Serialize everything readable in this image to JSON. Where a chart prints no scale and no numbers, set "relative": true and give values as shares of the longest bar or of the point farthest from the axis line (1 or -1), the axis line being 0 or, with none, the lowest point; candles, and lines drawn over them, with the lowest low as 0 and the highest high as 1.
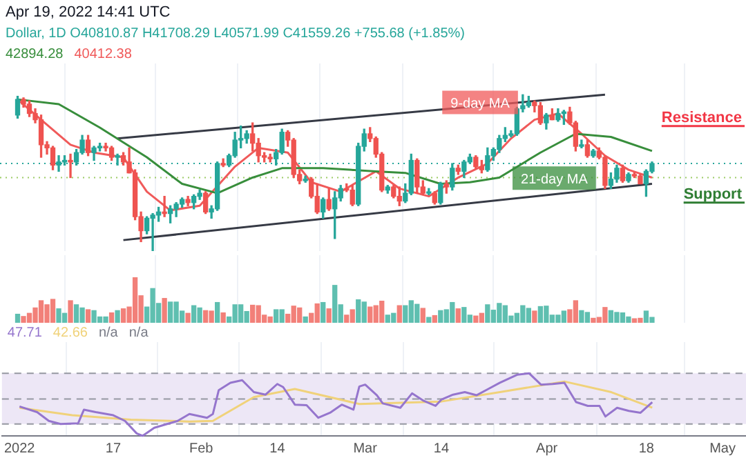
{
  "chart_data": [
    {
      "type": "candlestick",
      "title": "Apr 19, 2022 14:41 UTC",
      "subtitle": "Dollar, 1D  O40810.87  H41708.29  L40571.99  C41559.26  +755.68 (+1.85%)",
      "relative": true,
      "grid": "x",
      "tick_labels": false,
      "xlim": [
        "2021-12-29",
        "2022-05-05"
      ],
      "xticks": [
        {
          "value": "2022-01-01",
          "label": null
        },
        {
          "value": "2022-01-17",
          "label": null
        },
        {
          "value": "2022-02-01",
          "label": null
        },
        {
          "value": "2022-02-14",
          "label": null
        },
        {
          "value": "2022-03-01",
          "label": null
        },
        {
          "value": "2022-03-14",
          "label": null
        },
        {
          "value": "2022-04-01",
          "label": null
        },
        {
          "value": "2022-04-18",
          "label": null
        },
        {
          "value": "2022-05-01",
          "label": null
        }
      ],
      "x": [
        "2022-01-01",
        "2022-01-02",
        "2022-01-03",
        "2022-01-04",
        "2022-01-05",
        "2022-01-06",
        "2022-01-07",
        "2022-01-08",
        "2022-01-09",
        "2022-01-10",
        "2022-01-11",
        "2022-01-12",
        "2022-01-13",
        "2022-01-14",
        "2022-01-15",
        "2022-01-16",
        "2022-01-17",
        "2022-01-18",
        "2022-01-19",
        "2022-01-20",
        "2022-01-21",
        "2022-01-22",
        "2022-01-23",
        "2022-01-24",
        "2022-01-25",
        "2022-01-26",
        "2022-01-27",
        "2022-01-28",
        "2022-01-29",
        "2022-01-30",
        "2022-01-31",
        "2022-02-01",
        "2022-02-02",
        "2022-02-03",
        "2022-02-04",
        "2022-02-05",
        "2022-02-06",
        "2022-02-07",
        "2022-02-08",
        "2022-02-09",
        "2022-02-10",
        "2022-02-11",
        "2022-02-12",
        "2022-02-13",
        "2022-02-14",
        "2022-02-15",
        "2022-02-16",
        "2022-02-17",
        "2022-02-18",
        "2022-02-19",
        "2022-02-20",
        "2022-02-21",
        "2022-02-22",
        "2022-02-23",
        "2022-02-24",
        "2022-02-25",
        "2022-02-26",
        "2022-02-27",
        "2022-02-28",
        "2022-03-01",
        "2022-03-02",
        "2022-03-03",
        "2022-03-04",
        "2022-03-05",
        "2022-03-06",
        "2022-03-07",
        "2022-03-08",
        "2022-03-09",
        "2022-03-10",
        "2022-03-11",
        "2022-03-12",
        "2022-03-13",
        "2022-03-14",
        "2022-03-15",
        "2022-03-16",
        "2022-03-17",
        "2022-03-18",
        "2022-03-19",
        "2022-03-20",
        "2022-03-21",
        "2022-03-22",
        "2022-03-23",
        "2022-03-24",
        "2022-03-25",
        "2022-03-26",
        "2022-03-27",
        "2022-03-28",
        "2022-03-29",
        "2022-03-30",
        "2022-03-31",
        "2022-04-01",
        "2022-04-02",
        "2022-04-03",
        "2022-04-04",
        "2022-04-05",
        "2022-04-06",
        "2022-04-07",
        "2022-04-08",
        "2022-04-09",
        "2022-04-10",
        "2022-04-11",
        "2022-04-12",
        "2022-04-13",
        "2022-04-14",
        "2022-04-15",
        "2022-04-16",
        "2022-04-17",
        "2022-04-18",
        "2022-04-19"
      ],
      "ohlc": [
        [
          0.87,
          0.99,
          0.85,
          0.97
        ],
        [
          0.97,
          0.98,
          0.92,
          0.94
        ],
        [
          0.94,
          0.96,
          0.86,
          0.88
        ],
        [
          0.88,
          0.91,
          0.82,
          0.84
        ],
        [
          0.84,
          0.87,
          0.6,
          0.68
        ],
        [
          0.68,
          0.7,
          0.62,
          0.66
        ],
        [
          0.66,
          0.67,
          0.52,
          0.55
        ],
        [
          0.55,
          0.61,
          0.51,
          0.57
        ],
        [
          0.57,
          0.61,
          0.55,
          0.58
        ],
        [
          0.58,
          0.62,
          0.47,
          0.57
        ],
        [
          0.57,
          0.65,
          0.55,
          0.63
        ],
        [
          0.63,
          0.74,
          0.62,
          0.71
        ],
        [
          0.71,
          0.74,
          0.61,
          0.63
        ],
        [
          0.63,
          0.67,
          0.58,
          0.66
        ],
        [
          0.66,
          0.69,
          0.64,
          0.67
        ],
        [
          0.67,
          0.69,
          0.64,
          0.66
        ],
        [
          0.66,
          0.67,
          0.58,
          0.6
        ],
        [
          0.6,
          0.62,
          0.55,
          0.61
        ],
        [
          0.61,
          0.63,
          0.55,
          0.57
        ],
        [
          0.57,
          0.66,
          0.5,
          0.5
        ],
        [
          0.5,
          0.52,
          0.2,
          0.22
        ],
        [
          0.22,
          0.25,
          0.06,
          0.13
        ],
        [
          0.13,
          0.22,
          0.11,
          0.21
        ],
        [
          0.21,
          0.24,
          0,
          0.23
        ],
        [
          0.23,
          0.28,
          0.19,
          0.25
        ],
        [
          0.25,
          0.35,
          0.22,
          0.24
        ],
        [
          0.24,
          0.29,
          0.18,
          0.27
        ],
        [
          0.27,
          0.31,
          0.22,
          0.3
        ],
        [
          0.3,
          0.34,
          0.28,
          0.33
        ],
        [
          0.33,
          0.35,
          0.29,
          0.31
        ],
        [
          0.31,
          0.36,
          0.27,
          0.35
        ],
        [
          0.35,
          0.39,
          0.33,
          0.37
        ],
        [
          0.37,
          0.38,
          0.24,
          0.25
        ],
        [
          0.25,
          0.29,
          0.21,
          0.27
        ],
        [
          0.27,
          0.57,
          0.26,
          0.56
        ],
        [
          0.56,
          0.59,
          0.54,
          0.55
        ],
        [
          0.55,
          0.62,
          0.54,
          0.61
        ],
        [
          0.61,
          0.76,
          0.6,
          0.71
        ],
        [
          0.71,
          0.8,
          0.66,
          0.72
        ],
        [
          0.72,
          0.77,
          0.69,
          0.75
        ],
        [
          0.75,
          0.82,
          0.64,
          0.69
        ],
        [
          0.69,
          0.72,
          0.57,
          0.61
        ],
        [
          0.61,
          0.63,
          0.57,
          0.6
        ],
        [
          0.6,
          0.62,
          0.57,
          0.59
        ],
        [
          0.59,
          0.65,
          0.55,
          0.63
        ],
        [
          0.63,
          0.78,
          0.62,
          0.76
        ],
        [
          0.76,
          0.77,
          0.67,
          0.71
        ],
        [
          0.71,
          0.72,
          0.47,
          0.49
        ],
        [
          0.49,
          0.52,
          0.43,
          0.45
        ],
        [
          0.45,
          0.48,
          0.44,
          0.46
        ],
        [
          0.46,
          0.47,
          0.34,
          0.35
        ],
        [
          0.35,
          0.43,
          0.24,
          0.25
        ],
        [
          0.25,
          0.34,
          0.21,
          0.33
        ],
        [
          0.33,
          0.4,
          0.26,
          0.27
        ],
        [
          0.27,
          0.38,
          0.08,
          0.34
        ],
        [
          0.34,
          0.42,
          0.32,
          0.4
        ],
        [
          0.4,
          0.43,
          0.38,
          0.39
        ],
        [
          0.39,
          0.42,
          0.29,
          0.3
        ],
        [
          0.3,
          0.69,
          0.29,
          0.67
        ],
        [
          0.67,
          0.78,
          0.64,
          0.75
        ],
        [
          0.75,
          0.79,
          0.7,
          0.72
        ],
        [
          0.72,
          0.73,
          0.6,
          0.62
        ],
        [
          0.62,
          0.63,
          0.38,
          0.39
        ],
        [
          0.39,
          0.42,
          0.37,
          0.41
        ],
        [
          0.41,
          0.42,
          0.34,
          0.35
        ],
        [
          0.35,
          0.41,
          0.29,
          0.32
        ],
        [
          0.32,
          0.43,
          0.31,
          0.37
        ],
        [
          0.37,
          0.62,
          0.36,
          0.58
        ],
        [
          0.58,
          0.59,
          0.37,
          0.41
        ],
        [
          0.41,
          0.45,
          0.36,
          0.37
        ],
        [
          0.37,
          0.4,
          0.36,
          0.37
        ],
        [
          0.37,
          0.38,
          0.3,
          0.31
        ],
        [
          0.31,
          0.44,
          0.3,
          0.43
        ],
        [
          0.43,
          0.45,
          0.37,
          0.41
        ],
        [
          0.41,
          0.56,
          0.39,
          0.53
        ],
        [
          0.53,
          0.55,
          0.49,
          0.51
        ],
        [
          0.51,
          0.58,
          0.47,
          0.57
        ],
        [
          0.57,
          0.62,
          0.56,
          0.6
        ],
        [
          0.6,
          0.61,
          0.53,
          0.54
        ],
        [
          0.54,
          0.58,
          0.5,
          0.52
        ],
        [
          0.52,
          0.66,
          0.51,
          0.61
        ],
        [
          0.61,
          0.66,
          0.58,
          0.65
        ],
        [
          0.65,
          0.74,
          0.63,
          0.72
        ],
        [
          0.72,
          0.79,
          0.7,
          0.74
        ],
        [
          0.74,
          0.77,
          0.73,
          0.75
        ],
        [
          0.75,
          0.92,
          0.74,
          0.91
        ],
        [
          0.91,
          1,
          0.89,
          0.93
        ],
        [
          0.93,
          0.99,
          0.92,
          0.95
        ],
        [
          0.95,
          0.96,
          0.89,
          0.93
        ],
        [
          0.93,
          0.95,
          0.81,
          0.82
        ],
        [
          0.82,
          0.88,
          0.78,
          0.87
        ],
        [
          0.87,
          0.91,
          0.84,
          0.84
        ],
        [
          0.84,
          0.91,
          0.83,
          0.88
        ],
        [
          0.88,
          0.9,
          0.81,
          0.89
        ],
        [
          0.89,
          0.92,
          0.81,
          0.82
        ],
        [
          0.82,
          0.83,
          0.64,
          0.67
        ],
        [
          0.67,
          0.71,
          0.66,
          0.68
        ],
        [
          0.68,
          0.71,
          0.6,
          0.61
        ],
        [
          0.61,
          0.65,
          0.6,
          0.64
        ],
        [
          0.64,
          0.66,
          0.59,
          0.6
        ],
        [
          0.6,
          0.61,
          0.4,
          0.42
        ],
        [
          0.42,
          0.5,
          0.4,
          0.46
        ],
        [
          0.46,
          0.55,
          0.44,
          0.53
        ],
        [
          0.53,
          0.55,
          0.44,
          0.45
        ],
        [
          0.45,
          0.5,
          0.44,
          0.49
        ],
        [
          0.49,
          0.5,
          0.47,
          0.48
        ],
        [
          0.48,
          0.49,
          0.43,
          0.43
        ],
        [
          0.43,
          0.52,
          0.35,
          0.51
        ],
        [
          0.51,
          0.57,
          0.5,
          0.56
        ]
      ],
      "series": [
        {
          "name": "21-day MA",
          "type": "line",
          "color": "#388e3c",
          "x": [
            "2022-01-01",
            "2022-01-08",
            "2022-01-15",
            "2022-01-23",
            "2022-01-29",
            "2022-02-04",
            "2022-02-10",
            "2022-02-15",
            "2022-02-22",
            "2022-03-03",
            "2022-03-08",
            "2022-03-14",
            "2022-03-19",
            "2022-03-24",
            "2022-03-31",
            "2022-04-06",
            "2022-04-12",
            "2022-04-19"
          ],
          "values": [
            0.97,
            0.94,
            0.79,
            0.6,
            0.43,
            0.37,
            0.47,
            0.53,
            0.53,
            0.51,
            0.5,
            0.43,
            0.44,
            0.47,
            0.63,
            0.75,
            0.73,
            0.64
          ]
        },
        {
          "name": "9-day MA",
          "type": "line",
          "color": "#f05a5a",
          "x": [
            "2022-01-01",
            "2022-01-05",
            "2022-01-10",
            "2022-01-14",
            "2022-01-19",
            "2022-01-23",
            "2022-01-27",
            "2022-02-01",
            "2022-02-07",
            "2022-02-11",
            "2022-02-16",
            "2022-02-20",
            "2022-02-25",
            "2022-03-03",
            "2022-03-07",
            "2022-03-12",
            "2022-03-17",
            "2022-03-22",
            "2022-03-26",
            "2022-03-30",
            "2022-04-03",
            "2022-04-07",
            "2022-04-11",
            "2022-04-15",
            "2022-04-19"
          ],
          "values": [
            0.97,
            0.84,
            0.68,
            0.63,
            0.6,
            0.38,
            0.26,
            0.29,
            0.54,
            0.66,
            0.63,
            0.44,
            0.38,
            0.51,
            0.4,
            0.35,
            0.47,
            0.56,
            0.72,
            0.84,
            0.88,
            0.75,
            0.61,
            0.52,
            0.47
          ]
        },
        {
          "type": "line",
          "color": "#363a45",
          "x": [
            "2022-01-18",
            "2022-04-11"
          ],
          "values": [
            0.72,
            1
          ]
        },
        {
          "type": "line",
          "color": "#363a45",
          "x": [
            "2022-01-19",
            "2022-04-19"
          ],
          "values": [
            0.07,
            0.43
          ]
        }
      ],
      "ref_lines": [
        {
          "axis": "y",
          "value": 0.56,
          "color": "#26a69a",
          "line_style": "dotted"
        },
        {
          "axis": "y",
          "value": 0.47,
          "color": "#9ccc65",
          "line_style": "dotted"
        },
        {
          "axis": "y",
          "value": 0.8,
          "label": "Resistance",
          "color": "#f23645"
        },
        {
          "axis": "y",
          "value": 0.31,
          "label": "Support",
          "color": "#2e7d32"
        }
      ],
      "annotations": [
        "42894.28",
        "40412.38"
      ]
    },
    {
      "type": "bar",
      "relative": true,
      "grid": "x",
      "tick_labels": false,
      "xlim": [
        "2021-12-29",
        "2022-05-05"
      ],
      "xticks": [
        {
          "value": "2022-01-01",
          "label": null
        },
        {
          "value": "2022-01-17",
          "label": null
        },
        {
          "value": "2022-02-01",
          "label": null
        },
        {
          "value": "2022-02-14",
          "label": null
        },
        {
          "value": "2022-03-01",
          "label": null
        },
        {
          "value": "2022-03-14",
          "label": null
        },
        {
          "value": "2022-04-01",
          "label": null
        },
        {
          "value": "2022-04-18",
          "label": null
        },
        {
          "value": "2022-05-01",
          "label": null
        }
      ],
      "x": [
        "2022-01-01",
        "2022-01-02",
        "2022-01-03",
        "2022-01-04",
        "2022-01-05",
        "2022-01-06",
        "2022-01-07",
        "2022-01-08",
        "2022-01-09",
        "2022-01-10",
        "2022-01-11",
        "2022-01-12",
        "2022-01-13",
        "2022-01-14",
        "2022-01-15",
        "2022-01-16",
        "2022-01-17",
        "2022-01-18",
        "2022-01-19",
        "2022-01-20",
        "2022-01-21",
        "2022-01-22",
        "2022-01-23",
        "2022-01-24",
        "2022-01-25",
        "2022-01-26",
        "2022-01-27",
        "2022-01-28",
        "2022-01-29",
        "2022-01-30",
        "2022-01-31",
        "2022-02-01",
        "2022-02-02",
        "2022-02-03",
        "2022-02-04",
        "2022-02-05",
        "2022-02-06",
        "2022-02-07",
        "2022-02-08",
        "2022-02-09",
        "2022-02-10",
        "2022-02-11",
        "2022-02-12",
        "2022-02-13",
        "2022-02-14",
        "2022-02-15",
        "2022-02-16",
        "2022-02-17",
        "2022-02-18",
        "2022-02-19",
        "2022-02-20",
        "2022-02-21",
        "2022-02-22",
        "2022-02-23",
        "2022-02-24",
        "2022-02-25",
        "2022-02-26",
        "2022-02-27",
        "2022-02-28",
        "2022-03-01",
        "2022-03-02",
        "2022-03-03",
        "2022-03-04",
        "2022-03-05",
        "2022-03-06",
        "2022-03-07",
        "2022-03-08",
        "2022-03-09",
        "2022-03-10",
        "2022-03-11",
        "2022-03-12",
        "2022-03-13",
        "2022-03-14",
        "2022-03-15",
        "2022-03-16",
        "2022-03-17",
        "2022-03-18",
        "2022-03-19",
        "2022-03-20",
        "2022-03-21",
        "2022-03-22",
        "2022-03-23",
        "2022-03-24",
        "2022-03-25",
        "2022-03-26",
        "2022-03-27",
        "2022-03-28",
        "2022-03-29",
        "2022-03-30",
        "2022-03-31",
        "2022-04-01",
        "2022-04-02",
        "2022-04-03",
        "2022-04-04",
        "2022-04-05",
        "2022-04-06",
        "2022-04-07",
        "2022-04-08",
        "2022-04-09",
        "2022-04-10",
        "2022-04-11",
        "2022-04-12",
        "2022-04-13",
        "2022-04-14",
        "2022-04-15",
        "2022-04-16",
        "2022-04-17",
        "2022-04-18",
        "2022-04-19"
      ],
      "values": [
        0.19,
        0.14,
        0.21,
        0.33,
        0.49,
        0.4,
        0.52,
        0.31,
        0.21,
        0.49,
        0.4,
        0.33,
        0.29,
        0.27,
        0.13,
        0.13,
        0.22,
        0.27,
        0.31,
        0.35,
        1,
        0.6,
        0.35,
        0.76,
        0.43,
        0.54,
        0.46,
        0.46,
        0.26,
        0.21,
        0.38,
        0.33,
        0.27,
        0.26,
        0.45,
        0.22,
        0.13,
        0.4,
        0.4,
        0.25,
        0.39,
        0.38,
        0.17,
        0.13,
        0.29,
        0.29,
        0.19,
        0.37,
        0.33,
        0.13,
        0.21,
        0.42,
        0.45,
        0.31,
        0.83,
        0.4,
        0.17,
        0.29,
        0.51,
        0.46,
        0.35,
        0.38,
        0.48,
        0.17,
        0.21,
        0.38,
        0.38,
        0.49,
        0.41,
        0.32,
        0.12,
        0.16,
        0.27,
        0.29,
        0.45,
        0.31,
        0.34,
        0.17,
        0.15,
        0.21,
        0.4,
        0.28,
        0.43,
        0.38,
        0.15,
        0.21,
        0.38,
        0.32,
        0.26,
        0.36,
        0.37,
        0.17,
        0.17,
        0.26,
        0.29,
        0.49,
        0.27,
        0.23,
        0.1,
        0.12,
        0.34,
        0.27,
        0.23,
        0.22,
        0.13,
        0.09,
        0.1,
        0.26,
        0.12
      ],
      "colors": [
        "#5fbfb0",
        "#f28079",
        "#f28079",
        "#f28079",
        "#f28079",
        "#f28079",
        "#f28079",
        "#5fbfb0",
        "#5fbfb0",
        "#f28079",
        "#5fbfb0",
        "#5fbfb0",
        "#f28079",
        "#5fbfb0",
        "#5fbfb0",
        "#5fbfb0",
        "#f28079",
        "#5fbfb0",
        "#f28079",
        "#f28079",
        "#f28079",
        "#f28079",
        "#5fbfb0",
        "#5fbfb0",
        "#5fbfb0",
        "#f28079",
        "#5fbfb0",
        "#5fbfb0",
        "#5fbfb0",
        "#f28079",
        "#5fbfb0",
        "#5fbfb0",
        "#f28079",
        "#f28079",
        "#5fbfb0",
        "#f28079",
        "#5fbfb0",
        "#5fbfb0",
        "#5fbfb0",
        "#5fbfb0",
        "#f28079",
        "#f28079",
        "#f28079",
        "#f28079",
        "#5fbfb0",
        "#5fbfb0",
        "#f28079",
        "#f28079",
        "#f28079",
        "#5fbfb0",
        "#f28079",
        "#f28079",
        "#5fbfb0",
        "#f28079",
        "#5fbfb0",
        "#5fbfb0",
        "#f28079",
        "#f28079",
        "#5fbfb0",
        "#5fbfb0",
        "#f28079",
        "#f28079",
        "#f28079",
        "#5fbfb0",
        "#5fbfb0",
        "#f28079",
        "#5fbfb0",
        "#5fbfb0",
        "#5fbfb0",
        "#f28079",
        "#5fbfb0",
        "#f28079",
        "#5fbfb0",
        "#5fbfb0",
        "#5fbfb0",
        "#f28079",
        "#5fbfb0",
        "#5fbfb0",
        "#f28079",
        "#f28079",
        "#5fbfb0",
        "#5fbfb0",
        "#5fbfb0",
        "#5fbfb0",
        "#5fbfb0",
        "#5fbfb0",
        "#5fbfb0",
        "#5fbfb0",
        "#f28079",
        "#5fbfb0",
        "#5fbfb0",
        "#5fbfb0",
        "#5fbfb0",
        "#5fbfb0",
        "#f28079",
        "#f28079",
        "#5fbfb0",
        "#5fbfb0",
        "#f28079",
        "#f28079",
        "#f28079",
        "#5fbfb0",
        "#5fbfb0",
        "#5fbfb0",
        "#5fbfb0",
        "#f28079",
        "#f28079",
        "#5fbfb0",
        "#5fbfb0"
      ]
    },
    {
      "type": "line",
      "relative": true,
      "grid": "x",
      "tick_labels": "x",
      "xlim": [
        "2021-12-29",
        "2022-05-05"
      ],
      "xticks": [
        {
          "value": "2022-01-01",
          "label": "2022"
        },
        {
          "value": "2022-01-17",
          "label": "17"
        },
        {
          "value": "2022-02-01",
          "label": "Feb"
        },
        {
          "value": "2022-02-14",
          "label": "14"
        },
        {
          "value": "2022-03-01",
          "label": "Mar"
        },
        {
          "value": "2022-03-14",
          "label": "14"
        },
        {
          "value": "2022-04-01",
          "label": "Apr"
        },
        {
          "value": "2022-04-18",
          "label": "18"
        },
        {
          "value": "2022-05-01",
          "label": "May"
        }
      ],
      "series": [
        {
          "color": "#9575cd",
          "x": [
            "2022-01-01",
            "2022-01-04",
            "2022-01-06",
            "2022-01-08",
            "2022-01-11",
            "2022-01-12",
            "2022-01-14",
            "2022-01-17",
            "2022-01-19",
            "2022-01-21",
            "2022-01-22",
            "2022-01-24",
            "2022-01-28",
            "2022-01-30",
            "2022-02-02",
            "2022-02-03",
            "2022-02-04",
            "2022-02-06",
            "2022-02-08",
            "2022-02-10",
            "2022-02-12",
            "2022-02-14",
            "2022-02-15",
            "2022-02-17",
            "2022-02-19",
            "2022-02-21",
            "2022-02-23",
            "2022-02-25",
            "2022-02-27",
            "2022-02-28",
            "2022-03-01",
            "2022-03-03",
            "2022-03-04",
            "2022-03-07",
            "2022-03-09",
            "2022-03-11",
            "2022-03-13",
            "2022-03-14",
            "2022-03-16",
            "2022-03-18",
            "2022-03-20",
            "2022-03-22",
            "2022-03-24",
            "2022-03-27",
            "2022-03-29",
            "2022-03-31",
            "2022-04-02",
            "2022-04-04",
            "2022-04-06",
            "2022-04-08",
            "2022-04-10",
            "2022-04-11",
            "2022-04-13",
            "2022-04-15",
            "2022-04-17",
            "2022-04-19"
          ],
          "values": [
            0.47,
            0.38,
            0.24,
            0.19,
            0.2,
            0.42,
            0.38,
            0.33,
            0.24,
            0.04,
            0,
            0.13,
            0.24,
            0.35,
            0.29,
            0.35,
            0.73,
            0.85,
            0.89,
            0.7,
            0.66,
            0.83,
            0.78,
            0.5,
            0.49,
            0.29,
            0.37,
            0.5,
            0.42,
            0.79,
            0.82,
            0.65,
            0.52,
            0.45,
            0.68,
            0.56,
            0.48,
            0.58,
            0.66,
            0.7,
            0.65,
            0.75,
            0.85,
            0.98,
            1,
            0.82,
            0.83,
            0.85,
            0.54,
            0.48,
            0.48,
            0.31,
            0.45,
            0.4,
            0.37,
            0.54
          ]
        },
        {
          "color": "#f0d27a",
          "x": [
            "2022-01-01",
            "2022-01-10",
            "2022-01-20",
            "2022-01-30",
            "2022-02-03",
            "2022-02-10",
            "2022-02-17",
            "2022-02-28",
            "2022-03-14",
            "2022-03-24",
            "2022-04-04",
            "2022-04-12",
            "2022-04-19"
          ],
          "values": [
            0.45,
            0.33,
            0.26,
            0.23,
            0.24,
            0.62,
            0.75,
            0.51,
            0.55,
            0.7,
            0.87,
            0.7,
            0.45
          ]
        }
      ],
      "bands": [
        {
          "axis": "y",
          "from": 0.19,
          "to": 1,
          "color": "#ede7f6"
        }
      ],
      "ref_lines": [
        {
          "axis": "y",
          "value": 1,
          "color": "#9598a1",
          "line_style": "dashed"
        },
        {
          "axis": "y",
          "value": 0.59,
          "color": "#9598a1",
          "line_style": "dashed"
        },
        {
          "axis": "y",
          "value": 0.19,
          "color": "#9598a1",
          "line_style": "dashed"
        }
      ],
      "annotations": [
        "47.71",
        "42.66",
        "n/a",
        "n/a"
      ]
    }
  ]
}
